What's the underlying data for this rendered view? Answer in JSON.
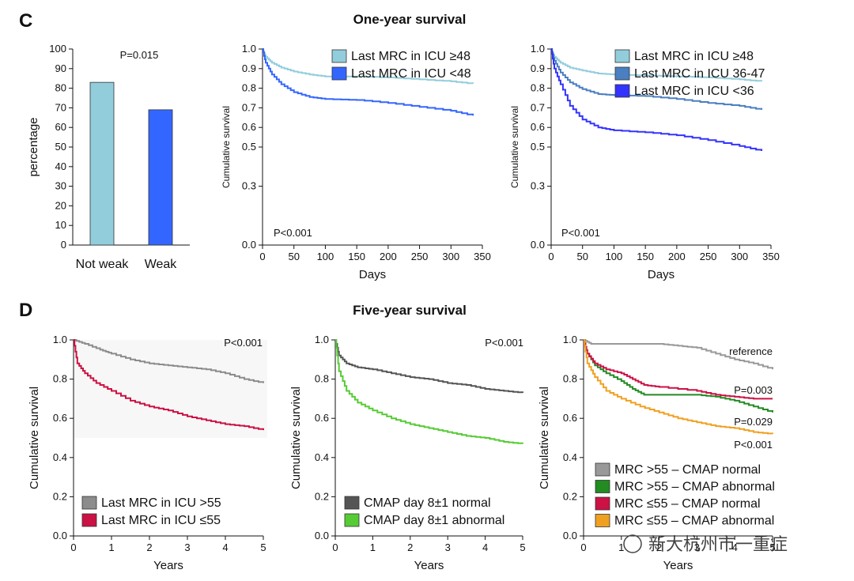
{
  "sections": {
    "c_letter": "C",
    "c_title": "One-year survival",
    "d_letter": "D",
    "d_title": "Five-year survival"
  },
  "watermark": "新大杭州市一重症",
  "chart_data": [
    {
      "id": "c1",
      "type": "bar",
      "title": "",
      "ylabel": "percentage",
      "ylim": [
        0,
        100
      ],
      "yticks": [
        0,
        10,
        20,
        30,
        40,
        50,
        60,
        70,
        80,
        90,
        100
      ],
      "categories": [
        "Not weak",
        "Weak"
      ],
      "values": [
        83,
        69
      ],
      "colors": [
        "#92cddc",
        "#3366ff"
      ],
      "annotation": "P=0.015"
    },
    {
      "id": "c2",
      "type": "line",
      "xlabel": "Days",
      "ylabel": "Cumulative survival",
      "xlim": [
        0,
        350
      ],
      "ylim": [
        0,
        1.0
      ],
      "xticks": [
        0,
        50,
        100,
        150,
        200,
        250,
        300,
        350
      ],
      "yticks": [
        0.0,
        0.3,
        0.5,
        0.6,
        0.7,
        0.8,
        0.9,
        1.0
      ],
      "ytick_labels": [
        "0.0",
        "0.3",
        "0.5",
        "0.6",
        "0.7",
        "0.8",
        "0.9",
        "1.0"
      ],
      "annotation": "P<0.001",
      "legend": "top-right",
      "series": [
        {
          "name": "Last MRC in ICU ≥48",
          "color": "#92cddc",
          "points": [
            [
              0,
              1.0
            ],
            [
              5,
              0.96
            ],
            [
              15,
              0.93
            ],
            [
              30,
              0.905
            ],
            [
              50,
              0.885
            ],
            [
              75,
              0.87
            ],
            [
              100,
              0.86
            ],
            [
              150,
              0.86
            ],
            [
              200,
              0.855
            ],
            [
              250,
              0.845
            ],
            [
              300,
              0.835
            ],
            [
              335,
              0.823
            ]
          ]
        },
        {
          "name": "Last MRC in ICU <48",
          "color": "#3366ff",
          "points": [
            [
              0,
              1.0
            ],
            [
              5,
              0.93
            ],
            [
              15,
              0.87
            ],
            [
              30,
              0.82
            ],
            [
              50,
              0.78
            ],
            [
              75,
              0.755
            ],
            [
              100,
              0.745
            ],
            [
              150,
              0.74
            ],
            [
              200,
              0.725
            ],
            [
              250,
              0.705
            ],
            [
              300,
              0.685
            ],
            [
              335,
              0.66
            ]
          ]
        }
      ]
    },
    {
      "id": "c3",
      "type": "line",
      "xlabel": "Days",
      "ylabel": "Cumulative survival",
      "xlim": [
        0,
        350
      ],
      "ylim": [
        0,
        1.0
      ],
      "xticks": [
        0,
        50,
        100,
        150,
        200,
        250,
        300,
        350
      ],
      "yticks": [
        0.0,
        0.3,
        0.5,
        0.6,
        0.7,
        0.8,
        0.9,
        1.0
      ],
      "ytick_labels": [
        "0.0",
        "0.3",
        "0.5",
        "0.6",
        "0.7",
        "0.8",
        "0.9",
        "1.0"
      ],
      "annotation": "P<0.001",
      "legend": "top-right",
      "series": [
        {
          "name": "Last MRC in ICU ≥48",
          "color": "#92cddc",
          "points": [
            [
              0,
              1.0
            ],
            [
              5,
              0.96
            ],
            [
              15,
              0.93
            ],
            [
              30,
              0.905
            ],
            [
              50,
              0.89
            ],
            [
              75,
              0.875
            ],
            [
              100,
              0.87
            ],
            [
              150,
              0.865
            ],
            [
              200,
              0.86
            ],
            [
              250,
              0.855
            ],
            [
              300,
              0.845
            ],
            [
              335,
              0.835
            ]
          ]
        },
        {
          "name": "Last MRC in ICU 36-47",
          "color": "#4a7fc1",
          "points": [
            [
              0,
              1.0
            ],
            [
              5,
              0.94
            ],
            [
              15,
              0.88
            ],
            [
              30,
              0.83
            ],
            [
              50,
              0.795
            ],
            [
              75,
              0.77
            ],
            [
              100,
              0.765
            ],
            [
              150,
              0.76
            ],
            [
              200,
              0.745
            ],
            [
              250,
              0.725
            ],
            [
              300,
              0.71
            ],
            [
              335,
              0.69
            ]
          ]
        },
        {
          "name": "Last MRC in ICU <36",
          "color": "#3333ff",
          "points": [
            [
              0,
              1.0
            ],
            [
              5,
              0.9
            ],
            [
              15,
              0.82
            ],
            [
              30,
              0.71
            ],
            [
              50,
              0.64
            ],
            [
              75,
              0.6
            ],
            [
              100,
              0.585
            ],
            [
              150,
              0.575
            ],
            [
              200,
              0.56
            ],
            [
              250,
              0.535
            ],
            [
              300,
              0.505
            ],
            [
              335,
              0.48
            ]
          ]
        }
      ]
    },
    {
      "id": "d1",
      "type": "line",
      "xlabel": "Years",
      "ylabel": "Cumulative survival",
      "xlim": [
        0,
        5
      ],
      "ylim": [
        0,
        1.0
      ],
      "xticks": [
        0,
        1,
        2,
        3,
        4,
        5
      ],
      "yticks": [
        0.0,
        0.2,
        0.4,
        0.6,
        0.8,
        1.0
      ],
      "ytick_labels": [
        "0.0",
        "0.2",
        "0.4",
        "0.6",
        "0.8",
        "1.0"
      ],
      "annotation": "P<0.001",
      "legend": "bottom-left",
      "series": [
        {
          "name": "Last MRC in ICU >55",
          "color": "#8c8c8c",
          "points": [
            [
              0,
              1.0
            ],
            [
              0.3,
              0.98
            ],
            [
              0.7,
              0.95
            ],
            [
              1,
              0.93
            ],
            [
              1.5,
              0.9
            ],
            [
              2,
              0.88
            ],
            [
              2.5,
              0.87
            ],
            [
              3,
              0.86
            ],
            [
              3.5,
              0.85
            ],
            [
              4,
              0.83
            ],
            [
              4.5,
              0.8
            ],
            [
              5,
              0.78
            ]
          ]
        },
        {
          "name": "Last MRC in ICU ≤55",
          "color": "#cc1144",
          "points": [
            [
              0,
              1.0
            ],
            [
              0.1,
              0.88
            ],
            [
              0.3,
              0.83
            ],
            [
              0.6,
              0.78
            ],
            [
              1,
              0.74
            ],
            [
              1.5,
              0.69
            ],
            [
              2,
              0.66
            ],
            [
              2.5,
              0.64
            ],
            [
              3,
              0.61
            ],
            [
              3.5,
              0.59
            ],
            [
              4,
              0.57
            ],
            [
              4.5,
              0.56
            ],
            [
              5,
              0.54
            ]
          ]
        }
      ]
    },
    {
      "id": "d2",
      "type": "line",
      "xlabel": "Years",
      "ylabel": "Cumulative survival",
      "xlim": [
        0,
        5
      ],
      "ylim": [
        0,
        1.0
      ],
      "xticks": [
        0,
        1,
        2,
        3,
        4,
        5
      ],
      "yticks": [
        0.0,
        0.2,
        0.4,
        0.6,
        0.8,
        1.0
      ],
      "ytick_labels": [
        "0.0",
        "0.2",
        "0.4",
        "0.6",
        "0.8",
        "1.0"
      ],
      "annotation": "P<0.001",
      "legend": "bottom-left",
      "series": [
        {
          "name": "CMAP day 8±1 normal",
          "color": "#555555",
          "points": [
            [
              0,
              1.0
            ],
            [
              0.1,
              0.92
            ],
            [
              0.3,
              0.88
            ],
            [
              0.6,
              0.86
            ],
            [
              1,
              0.85
            ],
            [
              1.5,
              0.83
            ],
            [
              2,
              0.81
            ],
            [
              2.5,
              0.8
            ],
            [
              3,
              0.78
            ],
            [
              3.5,
              0.77
            ],
            [
              4,
              0.75
            ],
            [
              4.5,
              0.74
            ],
            [
              5,
              0.73
            ]
          ]
        },
        {
          "name": "CMAP day 8±1 abnormal",
          "color": "#55cc33",
          "points": [
            [
              0,
              1.0
            ],
            [
              0.1,
              0.84
            ],
            [
              0.3,
              0.74
            ],
            [
              0.6,
              0.68
            ],
            [
              1,
              0.64
            ],
            [
              1.5,
              0.6
            ],
            [
              2,
              0.57
            ],
            [
              2.5,
              0.55
            ],
            [
              3,
              0.53
            ],
            [
              3.5,
              0.51
            ],
            [
              4,
              0.5
            ],
            [
              4.5,
              0.48
            ],
            [
              5,
              0.47
            ]
          ]
        }
      ]
    },
    {
      "id": "d3",
      "type": "line",
      "xlabel": "Years",
      "ylabel": "Cumulative survival",
      "xlim": [
        0,
        5
      ],
      "ylim": [
        0,
        1.0
      ],
      "xticks": [
        0,
        1,
        2,
        3,
        4,
        5
      ],
      "yticks": [
        0.0,
        0.2,
        0.4,
        0.6,
        0.8,
        1.0
      ],
      "ytick_labels": [
        "0.0",
        "0.2",
        "0.4",
        "0.6",
        "0.8",
        "1.0"
      ],
      "legend": "bottom-left",
      "series": [
        {
          "name": "MRC >55 – CMAP normal",
          "color": "#999999",
          "label": "reference",
          "points": [
            [
              0,
              1.0
            ],
            [
              0.2,
              0.98
            ],
            [
              1,
              0.98
            ],
            [
              2,
              0.98
            ],
            [
              2.5,
              0.97
            ],
            [
              3,
              0.96
            ],
            [
              3.5,
              0.93
            ],
            [
              4,
              0.9
            ],
            [
              4.5,
              0.88
            ],
            [
              5,
              0.85
            ]
          ]
        },
        {
          "name": "MRC >55 – CMAP abnormal",
          "color": "#228b22",
          "label": "P=0.003",
          "points": [
            [
              0,
              1.0
            ],
            [
              0.1,
              0.93
            ],
            [
              0.3,
              0.87
            ],
            [
              0.6,
              0.83
            ],
            [
              1,
              0.79
            ],
            [
              1.3,
              0.75
            ],
            [
              1.6,
              0.72
            ],
            [
              2,
              0.72
            ],
            [
              3,
              0.72
            ],
            [
              3.5,
              0.71
            ],
            [
              4,
              0.69
            ],
            [
              4.5,
              0.66
            ],
            [
              5,
              0.63
            ]
          ]
        },
        {
          "name": "MRC ≤55 – CMAP normal",
          "color": "#cc1144",
          "label": "P=0.029",
          "points": [
            [
              0,
              1.0
            ],
            [
              0.1,
              0.93
            ],
            [
              0.3,
              0.88
            ],
            [
              0.6,
              0.85
            ],
            [
              1,
              0.83
            ],
            [
              1.3,
              0.8
            ],
            [
              1.6,
              0.77
            ],
            [
              2,
              0.76
            ],
            [
              3,
              0.74
            ],
            [
              3.5,
              0.72
            ],
            [
              4,
              0.71
            ],
            [
              4.5,
              0.7
            ],
            [
              5,
              0.7
            ]
          ]
        },
        {
          "name": "MRC ≤55 – CMAP abnormal",
          "color": "#f0a020",
          "label": "P<0.001",
          "points": [
            [
              0,
              1.0
            ],
            [
              0.1,
              0.88
            ],
            [
              0.3,
              0.81
            ],
            [
              0.6,
              0.74
            ],
            [
              1,
              0.7
            ],
            [
              1.5,
              0.66
            ],
            [
              2,
              0.63
            ],
            [
              2.5,
              0.6
            ],
            [
              3,
              0.58
            ],
            [
              3.5,
              0.56
            ],
            [
              4,
              0.55
            ],
            [
              4.5,
              0.53
            ],
            [
              5,
              0.52
            ]
          ]
        }
      ]
    }
  ]
}
